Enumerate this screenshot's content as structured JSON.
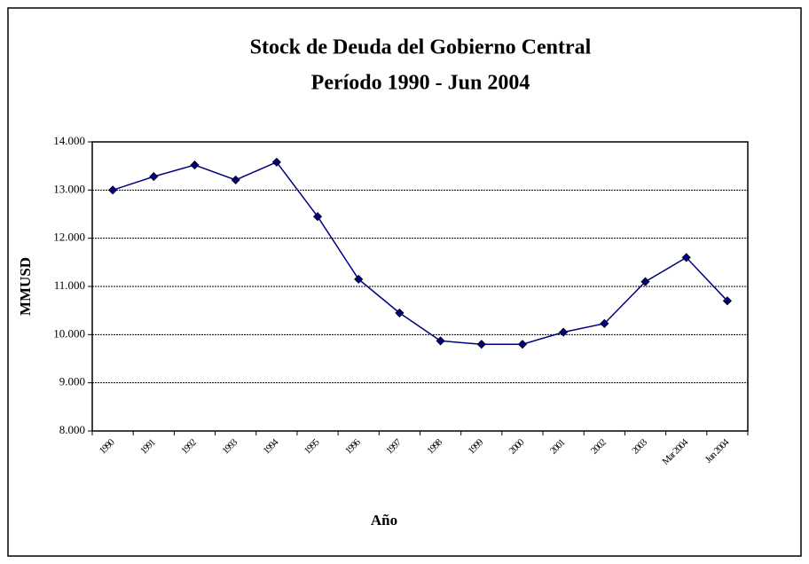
{
  "chart_data": {
    "type": "line",
    "title": "Stock de Deuda del Gobierno Central",
    "subtitle": "Período 1990 - Jun 2004",
    "x_label": "Año",
    "y_label": "MMUSD",
    "categories": [
      "1990",
      "1991",
      "1992",
      "1993",
      "1994",
      "1995",
      "1996",
      "1997",
      "1998",
      "1999",
      "2000",
      "2001",
      "2002",
      "2003",
      "Mar 2004",
      "Jun 2004"
    ],
    "series": [
      {
        "name": "Stock de Deuda",
        "color": "#000080",
        "values": [
          13000,
          13280,
          13520,
          13210,
          13580,
          12450,
          11150,
          10450,
          9870,
          9800,
          9800,
          10050,
          10230,
          11100,
          11600,
          10700
        ]
      }
    ],
    "ylim": [
      8000,
      14000
    ],
    "yticks": [
      {
        "value": 8000,
        "label": "8.000"
      },
      {
        "value": 9000,
        "label": "9.000"
      },
      {
        "value": 10000,
        "label": "10.000"
      },
      {
        "value": 11000,
        "label": "11.000"
      },
      {
        "value": 12000,
        "label": "12.000"
      },
      {
        "value": 13000,
        "label": "13.000"
      },
      {
        "value": 14000,
        "label": "14.000"
      }
    ],
    "grid": true
  }
}
